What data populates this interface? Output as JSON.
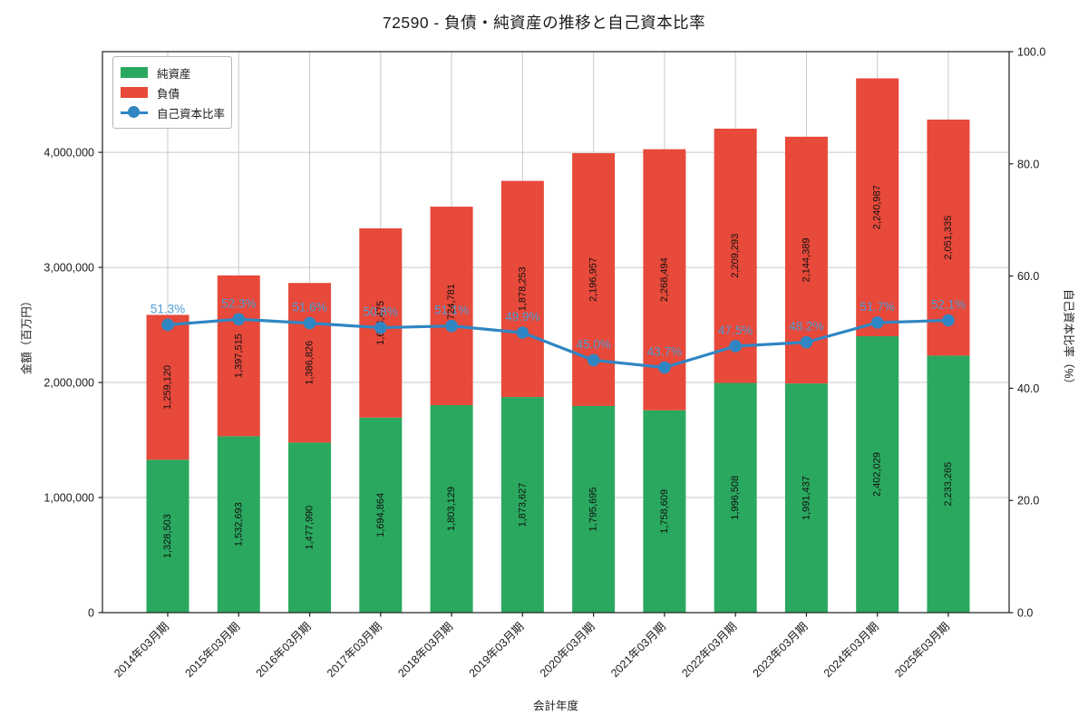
{
  "chart_data": {
    "type": "bar",
    "subtype": "stacked-bars-with-line",
    "title": "72590 - 負債・純資産の推移と自己資本比率",
    "xlabel": "会計年度",
    "ylabel_left": "金額（百万円）",
    "ylabel_right": "自己資本比率（%）",
    "categories": [
      "2014年03月期",
      "2015年03月期",
      "2016年03月期",
      "2017年03月期",
      "2018年03月期",
      "2019年03月期",
      "2020年03月期",
      "2021年03月期",
      "2022年03月期",
      "2023年03月期",
      "2024年03月期",
      "2025年03月期"
    ],
    "series": [
      {
        "name": "純資産",
        "type": "bar",
        "stack": true,
        "color": "#2aa85f",
        "values": [
          1328503,
          1532693,
          1477990,
          1694864,
          1803129,
          1873627,
          1795695,
          1758609,
          1996508,
          1991437,
          2402029,
          2233265
        ]
      },
      {
        "name": "負債",
        "type": "bar",
        "stack": true,
        "color": "#e7493a",
        "values": [
          1259120,
          1397515,
          1386826,
          1644475,
          1724781,
          1878253,
          2196957,
          2268494,
          2209293,
          2144389,
          2240987,
          2051335
        ]
      },
      {
        "name": "自己資本比率",
        "type": "line",
        "axis": "right",
        "color": "#2f86c3",
        "label_color": "#4d9bd3",
        "values": [
          51.3,
          52.3,
          51.6,
          50.8,
          51.1,
          49.9,
          45.0,
          43.7,
          47.5,
          48.2,
          51.7,
          52.1
        ]
      }
    ],
    "ylim_left": [
      0,
      4875000
    ],
    "ylim_right": [
      0,
      100
    ],
    "yticks_left": [
      {
        "value": 0,
        "label": "0"
      },
      {
        "value": 1000000,
        "label": "1,000,000"
      },
      {
        "value": 2000000,
        "label": "2,000,000"
      },
      {
        "value": 3000000,
        "label": "3,000,000"
      },
      {
        "value": 4000000,
        "label": "4,000,000"
      }
    ],
    "yticks_right": [
      {
        "value": 0,
        "label": "0.0"
      },
      {
        "value": 20,
        "label": "20.0"
      },
      {
        "value": 40,
        "label": "40.0"
      },
      {
        "value": 60,
        "label": "60.0"
      },
      {
        "value": 80,
        "label": "80.0"
      },
      {
        "value": 100,
        "label": "100.0"
      }
    ],
    "grid": true,
    "legend_position": "upper left",
    "colors": {
      "grid": "#c9c9c9",
      "spine": "#1f1f1f",
      "bar_value_text": "#111111",
      "background": "#ffffff"
    }
  }
}
